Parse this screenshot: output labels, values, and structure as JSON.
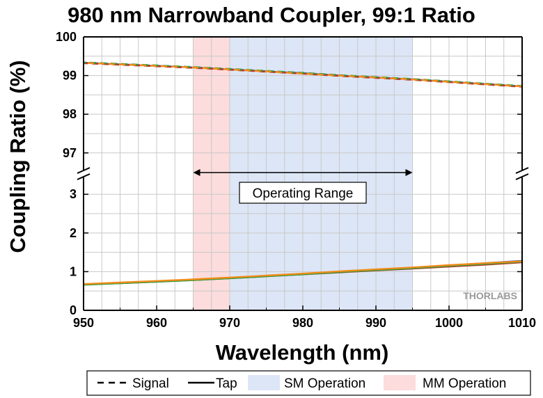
{
  "chart_data": {
    "type": "line",
    "title": "980 nm Narrowband Coupler, 99:1 Ratio",
    "xlabel": "Wavelength (nm)",
    "ylabel": "Coupling Ratio (%)",
    "xlim": [
      950,
      1010
    ],
    "x_ticks": [
      "950",
      "960",
      "970",
      "980",
      "990",
      "1000",
      "1010"
    ],
    "y_axis_broken": true,
    "y_segments": [
      {
        "range": [
          96.6,
          100
        ],
        "ticks": [
          "97",
          "98",
          "99",
          "100"
        ]
      },
      {
        "range": [
          0,
          3.4
        ],
        "ticks": [
          "0",
          "1",
          "2",
          "3"
        ]
      }
    ],
    "bands": [
      {
        "name": "SM Operation",
        "x": [
          970,
          995
        ],
        "color": "#dde6f6"
      },
      {
        "name": "MM Operation",
        "x": [
          965,
          970
        ],
        "color": "#fcdcdc"
      }
    ],
    "annotations": [
      {
        "text": "Operating Range",
        "x": [
          965,
          995
        ]
      }
    ],
    "line_colors": [
      "#2b4bbf",
      "#c0392b",
      "#2e9e3a",
      "#f08c1a"
    ],
    "legend": [
      {
        "label": "Signal",
        "style": "dashed"
      },
      {
        "label": "Tap",
        "style": "solid"
      },
      {
        "label": "SM Operation",
        "style": "band",
        "color": "#dde6f6"
      },
      {
        "label": "MM Operation",
        "style": "band",
        "color": "#fcdcdc"
      }
    ],
    "legend_position": "bottom",
    "x": [
      950,
      955,
      960,
      965,
      970,
      975,
      980,
      985,
      990,
      995,
      1000,
      1005,
      1010
    ],
    "signal_series": [
      {
        "values": [
          99.33,
          99.29,
          99.25,
          99.21,
          99.16,
          99.11,
          99.06,
          99.0,
          98.95,
          98.9,
          98.84,
          98.78,
          98.72
        ]
      },
      {
        "values": [
          99.32,
          99.28,
          99.24,
          99.2,
          99.15,
          99.1,
          99.05,
          98.99,
          98.94,
          98.89,
          98.83,
          98.77,
          98.71
        ]
      },
      {
        "values": [
          99.34,
          99.3,
          99.26,
          99.22,
          99.17,
          99.12,
          99.07,
          99.01,
          98.96,
          98.91,
          98.85,
          98.79,
          98.73
        ]
      },
      {
        "values": [
          99.33,
          99.29,
          99.25,
          99.21,
          99.16,
          99.11,
          99.05,
          99.0,
          98.95,
          98.9,
          98.84,
          98.78,
          98.72
        ]
      }
    ],
    "tap_series": [
      {
        "values": [
          0.67,
          0.71,
          0.75,
          0.79,
          0.84,
          0.89,
          0.94,
          1.0,
          1.05,
          1.1,
          1.16,
          1.22,
          1.28
        ]
      },
      {
        "values": [
          0.67,
          0.7,
          0.74,
          0.78,
          0.83,
          0.88,
          0.93,
          0.98,
          1.03,
          1.08,
          1.13,
          1.18,
          1.24
        ]
      },
      {
        "values": [
          0.66,
          0.7,
          0.74,
          0.78,
          0.83,
          0.88,
          0.93,
          0.99,
          1.04,
          1.09,
          1.15,
          1.2,
          1.26
        ]
      },
      {
        "values": [
          0.68,
          0.72,
          0.76,
          0.8,
          0.85,
          0.9,
          0.95,
          1.01,
          1.06,
          1.11,
          1.17,
          1.22,
          1.27
        ]
      }
    ],
    "watermark": "THORLABS"
  }
}
